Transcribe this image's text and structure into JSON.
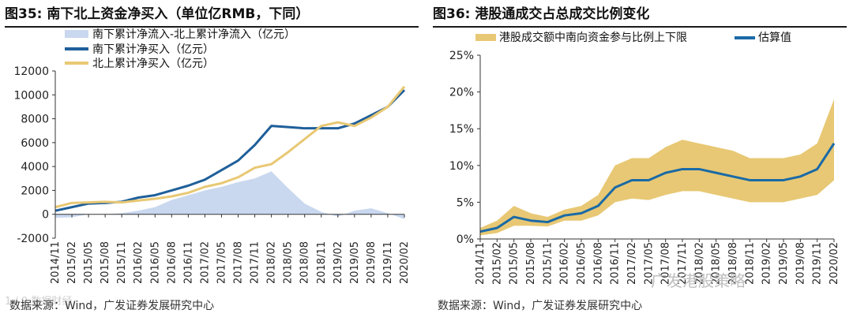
{
  "left": {
    "title": "图35:  南下北上资金净买入（单位亿RMB，下同）",
    "source": "数据来源：Wind，广发证券发展研究中心",
    "legend": {
      "area": "南下累计净流入-北上累计净流入（亿元）",
      "south": "南下累计净买入（亿元）",
      "north": "北上累计净买入（亿元）"
    },
    "colors": {
      "south": "#1f5f9a",
      "north": "#e8c874",
      "area": "#c9d8ef"
    },
    "yticks": [
      "12000",
      "10000",
      "8000",
      "6000",
      "4000",
      "2000",
      "0",
      "-2000"
    ],
    "xticks": [
      "2014/11",
      "2015/02",
      "2015/05",
      "2015/08",
      "2015/11",
      "2016/02",
      "2016/05",
      "2016/08",
      "2016/11",
      "2017/02",
      "2017/05",
      "2017/08",
      "2017/11",
      "2018/02",
      "2018/05",
      "2018/08",
      "2018/11",
      "2019/02",
      "2019/05",
      "2019/08",
      "2019/11",
      "2020/02"
    ]
  },
  "right": {
    "title": "图36:  港股通成交占总成交比例变化",
    "source": "数据来源：Wind，广发证券发展研究中心",
    "legend": {
      "band": "港股成交额中南向资金参与比例上下限",
      "est": "估算值"
    },
    "colors": {
      "band": "#e8c874",
      "est": "#1a6aa6"
    },
    "yticks": [
      "25%",
      "20%",
      "15%",
      "10%",
      "5%",
      "0%"
    ],
    "xticks": [
      "2014/11",
      "2015/02",
      "2015/05",
      "2015/08",
      "2015/11",
      "2016/02",
      "2016/05",
      "2016/08",
      "2016/11",
      "2017/02",
      "2017/05",
      "2017/08",
      "2017/11",
      "2018/02",
      "2018/05",
      "2018/08",
      "2018/11",
      "2019/02",
      "2019/05",
      "2019/08",
      "2019/11",
      "2020/02"
    ]
  },
  "watermark": {
    "left": "1 / 0 数据财经",
    "right": "广发港股策略"
  },
  "chart_data": [
    {
      "type": "line",
      "title": "南下北上资金净买入（单位亿RMB，下同）",
      "ylim": [
        -2000,
        12000
      ],
      "x": [
        "2014/11",
        "2015/02",
        "2015/05",
        "2015/08",
        "2015/11",
        "2016/02",
        "2016/05",
        "2016/08",
        "2016/11",
        "2017/02",
        "2017/05",
        "2017/08",
        "2017/11",
        "2018/02",
        "2018/05",
        "2018/08",
        "2018/11",
        "2019/02",
        "2019/05",
        "2019/08",
        "2019/11",
        "2020/02"
      ],
      "series": [
        {
          "name": "南下累计净流入-北上累计净流入（亿元）",
          "kind": "area",
          "values": [
            -300,
            -250,
            0,
            0,
            100,
            300,
            600,
            1200,
            1600,
            2000,
            2300,
            2700,
            3000,
            3600,
            2200,
            900,
            200,
            -200,
            300,
            500,
            100,
            -400
          ]
        },
        {
          "name": "南下累计净买入（亿元）",
          "values": [
            300,
            600,
            900,
            950,
            1050,
            1400,
            1600,
            2000,
            2400,
            2900,
            3700,
            4500,
            5800,
            7400,
            7300,
            7200,
            7200,
            7200,
            7600,
            8300,
            9000,
            10400
          ]
        },
        {
          "name": "北上累计净买入（亿元）",
          "values": [
            600,
            950,
            1000,
            1050,
            1000,
            1150,
            1300,
            1500,
            1800,
            2300,
            2600,
            3100,
            3900,
            4200,
            5200,
            6300,
            7400,
            7700,
            7400,
            8100,
            9000,
            10700
          ]
        }
      ]
    },
    {
      "type": "line",
      "title": "港股通成交占总成交比例变化",
      "ylim": [
        0,
        25
      ],
      "x": [
        "2014/11",
        "2015/02",
        "2015/05",
        "2015/08",
        "2015/11",
        "2016/02",
        "2016/05",
        "2016/08",
        "2016/11",
        "2017/02",
        "2017/05",
        "2017/08",
        "2017/11",
        "2018/02",
        "2018/05",
        "2018/08",
        "2018/11",
        "2019/02",
        "2019/05",
        "2019/08",
        "2019/11",
        "2020/02"
      ],
      "series": [
        {
          "name": "港股成交额中南向资金参与比例上下限",
          "kind": "band",
          "lower": [
            0.5,
            0.8,
            1.8,
            1.8,
            1.7,
            2.5,
            2.5,
            3.2,
            5.0,
            5.5,
            5.3,
            6.0,
            6.5,
            6.5,
            6.0,
            5.5,
            5.0,
            5.0,
            5.0,
            5.5,
            6.0,
            8.0
          ],
          "upper": [
            1.5,
            2.5,
            4.5,
            3.5,
            3.0,
            4.0,
            4.5,
            6.0,
            10.0,
            11.0,
            11.0,
            12.5,
            13.5,
            13.0,
            12.5,
            12.0,
            11.0,
            11.0,
            11.0,
            11.5,
            13.0,
            19.0
          ]
        },
        {
          "name": "估算值",
          "values": [
            1.0,
            1.5,
            3.0,
            2.5,
            2.3,
            3.2,
            3.5,
            4.5,
            7.0,
            8.0,
            8.0,
            9.0,
            9.5,
            9.5,
            9.0,
            8.5,
            8.0,
            8.0,
            8.0,
            8.5,
            9.5,
            13.0
          ]
        }
      ]
    }
  ]
}
